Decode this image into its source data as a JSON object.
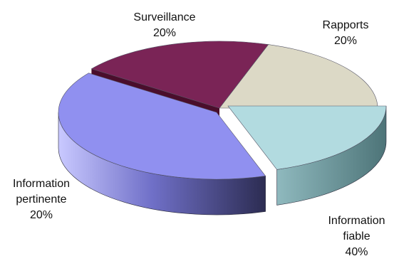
{
  "chart_data": {
    "type": "pie",
    "title": "",
    "three_d": true,
    "exploded_slices": [
      "Rapports",
      "Information fiable"
    ],
    "slices": [
      {
        "label": "Rapports",
        "label_lines": [
          "Rapports"
        ],
        "value": 20,
        "pct": "20%",
        "color": "#b2dbe0"
      },
      {
        "label": "Information fiable",
        "label_lines": [
          "Information",
          "fiable"
        ],
        "value": 40,
        "pct": "40%",
        "color": "#9090f0"
      },
      {
        "label": "Information pertinente",
        "label_lines": [
          "Information",
          "pertinente"
        ],
        "value": 20,
        "pct": "20%",
        "color": "#7a2456"
      },
      {
        "label": "Surveillance",
        "label_lines": [
          "Surveillance"
        ],
        "value": 20,
        "pct": "20%",
        "color": "#dcd9c6"
      }
    ]
  }
}
